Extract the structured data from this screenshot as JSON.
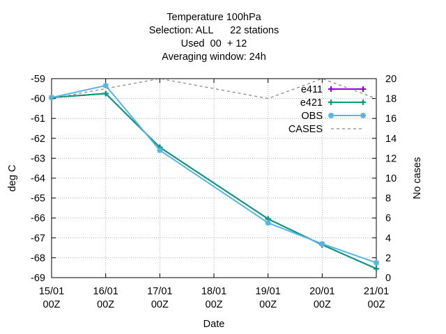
{
  "title_lines": [
    "Temperature 100hPa",
    "Selection: ALL      22 stations",
    "Used  00  + 12",
    "Averaging window: 24h"
  ],
  "chart_data": {
    "type": "line",
    "title": "Temperature 100hPa",
    "xlabel": "Date",
    "ylabel": "deg C",
    "y2label": "No cases",
    "x": [
      "15/01 00Z",
      "16/01 00Z",
      "17/01 00Z",
      "18/01 00Z",
      "19/01 00Z",
      "20/01 00Z",
      "21/01 00Z"
    ],
    "x_ticks": [
      {
        "top": "15/01",
        "bottom": "00Z"
      },
      {
        "top": "16/01",
        "bottom": "00Z"
      },
      {
        "top": "17/01",
        "bottom": "00Z"
      },
      {
        "top": "18/01",
        "bottom": "00Z"
      },
      {
        "top": "19/01",
        "bottom": "00Z"
      },
      {
        "top": "20/01",
        "bottom": "00Z"
      },
      {
        "top": "21/01",
        "bottom": "00Z"
      }
    ],
    "ylim": [
      -69,
      -59
    ],
    "y_ticks": [
      "-59",
      "-60",
      "-61",
      "-62",
      "-63",
      "-64",
      "-65",
      "-66",
      "-67",
      "-68",
      "-69"
    ],
    "y2lim": [
      0,
      20
    ],
    "y2_ticks": [
      "20",
      "18",
      "16",
      "14",
      "12",
      "10",
      "8",
      "6",
      "4",
      "2",
      "0"
    ],
    "grid": true,
    "legend_position": "top-right",
    "series": [
      {
        "name": "e411",
        "axis": "left",
        "color": "#9400d3",
        "style": "solid",
        "marker": "plus",
        "x": [
          "15/01 00Z",
          "16/01 00Z",
          "17/01 00Z",
          "19/01 00Z",
          "20/01 00Z",
          "21/01 00Z"
        ],
        "values": [
          -59.95,
          -59.75,
          -62.45,
          -66.05,
          -67.35,
          -68.55
        ]
      },
      {
        "name": "e421",
        "axis": "left",
        "color": "#009e73",
        "style": "solid",
        "marker": "plus",
        "x": [
          "15/01 00Z",
          "16/01 00Z",
          "17/01 00Z",
          "19/01 00Z",
          "20/01 00Z",
          "21/01 00Z"
        ],
        "values": [
          -59.95,
          -59.75,
          -62.45,
          -66.05,
          -67.35,
          -68.55
        ]
      },
      {
        "name": "OBS",
        "axis": "left",
        "color": "#56b4e9",
        "style": "solid",
        "marker": "star",
        "x": [
          "15/01 00Z",
          "16/01 00Z",
          "17/01 00Z",
          "19/01 00Z",
          "20/01 00Z",
          "21/01 00Z"
        ],
        "values": [
          -59.95,
          -59.35,
          -62.6,
          -66.25,
          -67.3,
          -68.25
        ]
      },
      {
        "name": "CASES",
        "axis": "right",
        "color": "#888888",
        "style": "dashed",
        "marker": "none",
        "x": [
          "15/01 00Z",
          "16/01 00Z",
          "17/01 00Z",
          "18/01 00Z",
          "19/01 00Z",
          "20/01 00Z",
          "21/01 00Z"
        ],
        "values": [
          18,
          19,
          20,
          19,
          18,
          20,
          18
        ]
      }
    ]
  }
}
